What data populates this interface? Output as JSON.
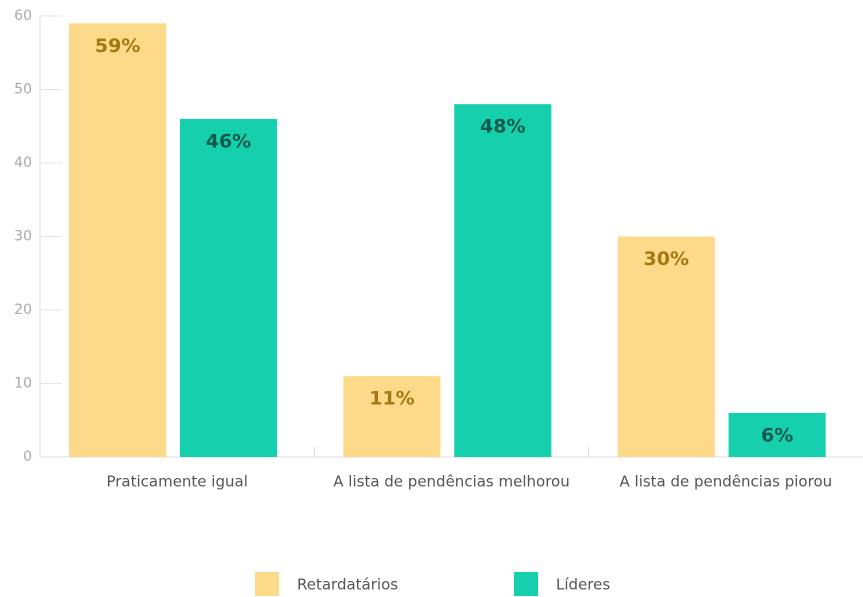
{
  "chart_data": {
    "type": "bar",
    "categories": [
      "Praticamente igual",
      "A lista de pendências melhorou",
      "A lista de pendências piorou"
    ],
    "series": [
      {
        "name": "Retardatários",
        "color": "#fdd98a",
        "label_color": "#a57810",
        "values": [
          59,
          11,
          30
        ],
        "value_labels": [
          "59%",
          "11%",
          "30%"
        ]
      },
      {
        "name": "Líderes",
        "color": "#15cfad",
        "label_color": "#0f5a4c",
        "values": [
          46,
          48,
          6
        ],
        "value_labels": [
          "46%",
          "48%",
          "6%"
        ]
      }
    ],
    "ylim": [
      0,
      60
    ],
    "yticks": [
      0,
      10,
      20,
      30,
      40,
      50,
      60
    ],
    "legend": "bottom"
  }
}
